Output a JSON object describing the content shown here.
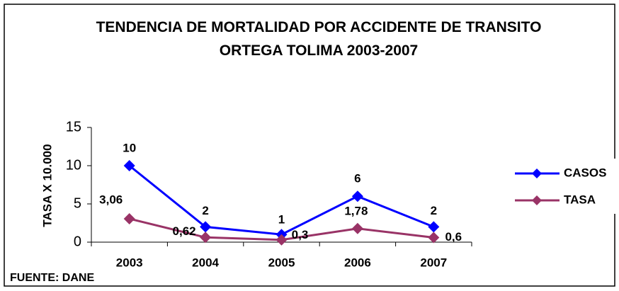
{
  "chart_data": {
    "type": "line",
    "title": "TENDENCIA DE MORTALIDAD POR ACCIDENTE DE TRANSITO",
    "subtitle": "ORTEGA TOLIMA 2003-2007",
    "y_label": "TASA X 10.000",
    "source": "FUENTE: DANE",
    "categories": [
      "2003",
      "2004",
      "2005",
      "2006",
      "2007"
    ],
    "series": [
      {
        "name": "CASOS",
        "color": "#0000ff",
        "values": [
          10,
          2,
          1,
          6,
          2
        ]
      },
      {
        "name": "TASA",
        "color": "#993366",
        "values": [
          3.06,
          0.62,
          0.3,
          1.78,
          0.6
        ],
        "value_labels": [
          "3,06",
          "0,62",
          "0,3",
          "1,78",
          "0,6"
        ]
      }
    ],
    "ylim": [
      0,
      15
    ],
    "yticks": [
      0,
      5,
      10,
      15
    ],
    "grid": false,
    "legend": "right"
  }
}
